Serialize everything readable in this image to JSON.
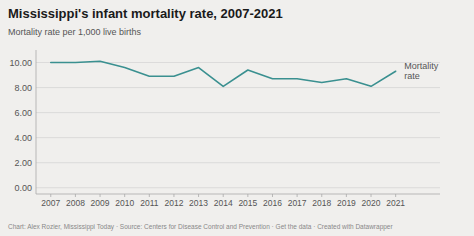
{
  "chart_data": {
    "type": "line",
    "title": "Mississippi's infant mortality rate, 2007-2021",
    "subtitle": "Mortality rate per 1,000 live births",
    "x": [
      2007,
      2008,
      2009,
      2010,
      2011,
      2012,
      2013,
      2014,
      2015,
      2016,
      2017,
      2018,
      2019,
      2020,
      2021
    ],
    "values": [
      10.0,
      10.0,
      10.1,
      9.6,
      8.9,
      8.9,
      9.6,
      8.1,
      9.4,
      8.7,
      8.7,
      8.4,
      8.7,
      8.1,
      9.3
    ],
    "color": "#3a9090",
    "xlim": [
      2006.4,
      2022.8
    ],
    "xticks": [
      2007,
      2008,
      2009,
      2010,
      2011,
      2012,
      2013,
      2014,
      2015,
      2016,
      2017,
      2018,
      2019,
      2020,
      2021
    ],
    "ylim": [
      -0.5,
      11.0
    ],
    "yticks": [
      {
        "value": 0.0,
        "label": "0.00"
      },
      {
        "value": 2.0,
        "label": "2.00"
      },
      {
        "value": 4.0,
        "label": "4.00"
      },
      {
        "value": 6.0,
        "label": "6.00"
      },
      {
        "value": 8.0,
        "label": "8.00"
      },
      {
        "value": 10.0,
        "label": "10.00"
      }
    ],
    "grid": true,
    "annotations": [
      {
        "text": "Mortality\nrate",
        "x": 2021.35,
        "y": 9.3
      }
    ],
    "footer": "Chart: Alex Rozier, Mississippi Today · Source: Centers for Disease Control and Prevention · Get the data · Created with Datawrapper"
  }
}
